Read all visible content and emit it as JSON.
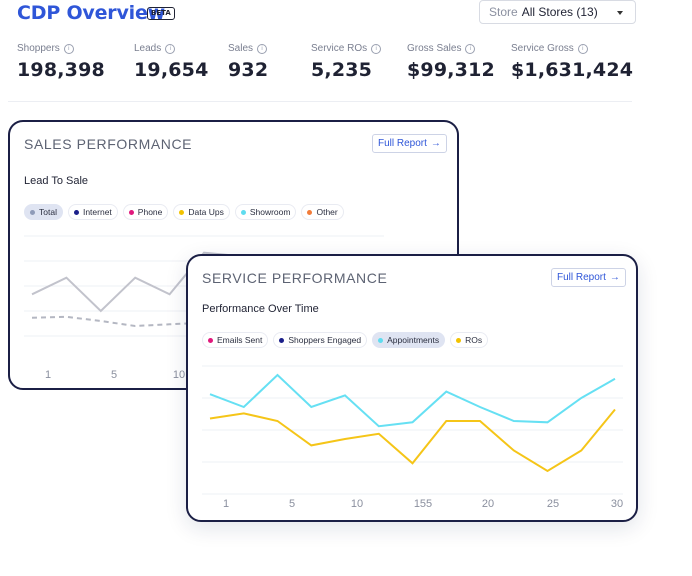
{
  "header": {
    "title": "CDP Overview",
    "badge": "BETA",
    "store_label": "Store",
    "store_value": "All Stores (13)"
  },
  "stats": [
    {
      "label": "Shoppers",
      "value": "198,398"
    },
    {
      "label": "Leads",
      "value": "19,654"
    },
    {
      "label": "Sales",
      "value": "932"
    },
    {
      "label": "Service ROs",
      "value": "5,235"
    },
    {
      "label": "Gross Sales",
      "value": "$99,312"
    },
    {
      "label": "Service Gross",
      "value": "$1,631,424"
    }
  ],
  "sales": {
    "title": "SALES PERFORMANCE",
    "full_report": "Full Report",
    "subtitle": "Lead To Sale",
    "legend": [
      {
        "label": "Total",
        "color": "#8f9bb8",
        "active": true
      },
      {
        "label": "Internet",
        "color": "#1b1f8a",
        "active": false
      },
      {
        "label": "Phone",
        "color": "#e0197d",
        "active": false
      },
      {
        "label": "Data Ups",
        "color": "#f2c200",
        "active": false
      },
      {
        "label": "Showroom",
        "color": "#5fdcef",
        "active": false
      },
      {
        "label": "Other",
        "color": "#f27c3a",
        "active": false
      }
    ],
    "x_ticks": [
      "1",
      "5",
      "10"
    ]
  },
  "service": {
    "title": "SERVICE PERFORMANCE",
    "full_report": "Full Report",
    "subtitle": "Performance Over Time",
    "legend": [
      {
        "label": "Emails Sent",
        "color": "#e0197d",
        "active": false
      },
      {
        "label": "Shoppers Engaged",
        "color": "#1b1f8a",
        "active": false
      },
      {
        "label": "Appointments",
        "color": "#5fdcef",
        "active": true
      },
      {
        "label": "ROs",
        "color": "#f2c200",
        "active": false
      }
    ],
    "x_ticks": [
      "1",
      "5",
      "10",
      "155",
      "20",
      "25",
      "30"
    ]
  },
  "chart_data": [
    {
      "type": "line",
      "title": "Lead To Sale",
      "series": [
        {
          "name": "Total",
          "color": "#c2c3cc",
          "style": "solid",
          "values": [
            4,
            6,
            2,
            6,
            4,
            9,
            8.6,
            5,
            7.2,
            8.6,
            8.6
          ]
        },
        {
          "name": "",
          "color": "#b4b7c2",
          "style": "dashed",
          "values": [
            1.2,
            1.3,
            0.8,
            0.2,
            0.4,
            0.6,
            0.8,
            0.8,
            0.8,
            0.8,
            0.8
          ]
        }
      ],
      "ylim": [
        -1,
        11
      ]
    },
    {
      "type": "line",
      "title": "Performance Over Time",
      "series": [
        {
          "name": "Appointments",
          "color": "#66e0f3",
          "values": [
            7.8,
            6.8,
            9.3,
            6.8,
            7.7,
            5.3,
            5.6,
            8.0,
            6.8,
            5.7,
            5.6,
            7.5,
            9.0
          ]
        },
        {
          "name": "ROs",
          "color": "#f5c518",
          "values": [
            5.9,
            6.3,
            5.7,
            3.8,
            4.3,
            4.7,
            2.4,
            5.7,
            5.7,
            3.4,
            1.8,
            3.4,
            6.6
          ]
        }
      ],
      "ylim": [
        0,
        10
      ]
    }
  ]
}
